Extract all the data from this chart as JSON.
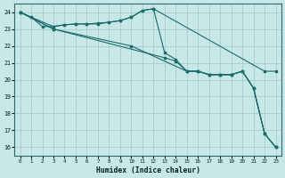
{
  "xlabel": "Humidex (Indice chaleur)",
  "bg_color": "#c8e8e8",
  "grid_color": "#a0c8c8",
  "line_color": "#1a6b6b",
  "xlim": [
    -0.5,
    23.5
  ],
  "ylim": [
    15.5,
    24.5
  ],
  "yticks": [
    16,
    17,
    18,
    19,
    20,
    21,
    22,
    23,
    24
  ],
  "xticks": [
    0,
    1,
    2,
    3,
    4,
    5,
    6,
    7,
    8,
    9,
    10,
    11,
    12,
    13,
    14,
    15,
    16,
    17,
    18,
    19,
    20,
    21,
    22,
    23
  ],
  "line1_x": [
    0,
    1,
    2,
    3,
    4,
    5,
    6,
    7,
    8,
    9,
    10,
    11,
    12,
    22,
    23
  ],
  "line1_y": [
    24.0,
    23.7,
    23.15,
    23.15,
    23.25,
    23.3,
    23.3,
    23.3,
    23.4,
    23.5,
    23.7,
    24.1,
    24.2,
    20.5,
    20.5
  ],
  "line2_x": [
    0,
    1,
    3,
    4,
    5,
    6,
    7,
    8,
    9,
    10,
    11,
    12,
    13,
    14,
    15,
    16,
    17,
    18,
    19,
    20,
    21,
    22,
    23
  ],
  "line2_y": [
    24.0,
    23.7,
    23.15,
    23.25,
    23.3,
    23.3,
    23.35,
    23.4,
    23.5,
    23.7,
    24.1,
    24.2,
    21.6,
    21.2,
    20.5,
    20.5,
    20.3,
    20.3,
    20.3,
    20.5,
    19.5,
    16.8,
    16.0
  ],
  "line3_x": [
    0,
    3,
    10,
    15,
    16,
    17,
    18,
    19,
    20,
    21,
    22,
    23
  ],
  "line3_y": [
    24.0,
    23.0,
    22.0,
    20.5,
    20.5,
    20.3,
    20.3,
    20.3,
    20.5,
    19.5,
    16.8,
    16.0
  ],
  "line4_x": [
    0,
    3,
    13,
    14,
    15,
    16,
    17,
    18,
    19,
    20,
    21,
    22,
    23
  ],
  "line4_y": [
    24.0,
    23.0,
    21.3,
    21.1,
    20.5,
    20.5,
    20.3,
    20.3,
    20.3,
    20.5,
    19.5,
    16.8,
    16.0
  ]
}
